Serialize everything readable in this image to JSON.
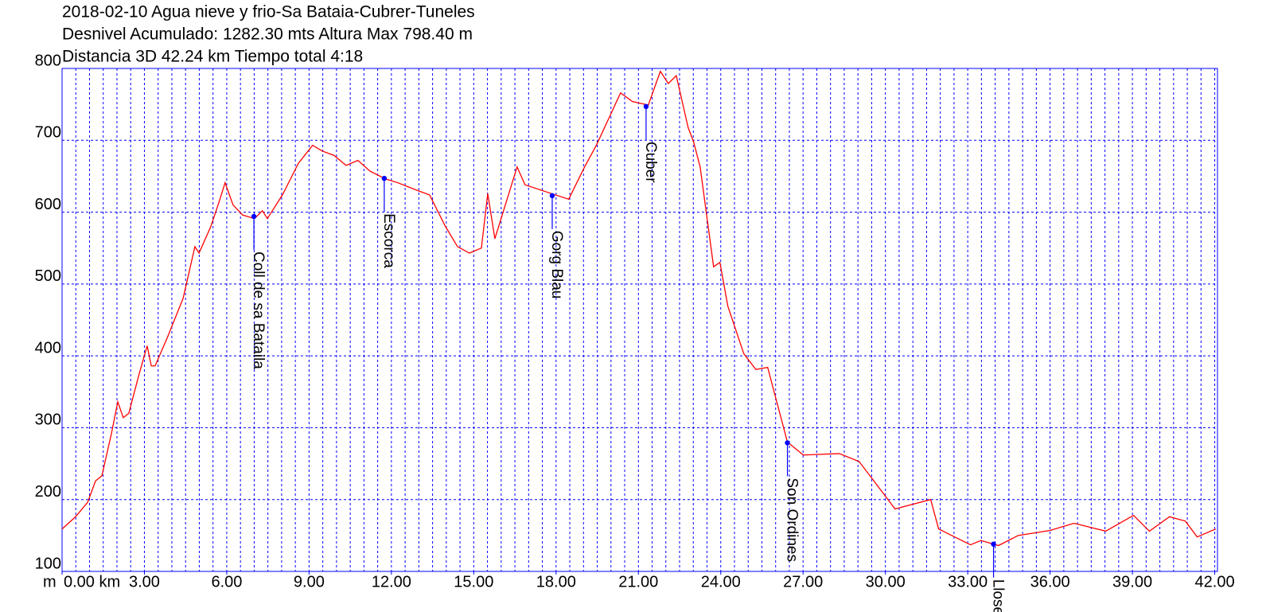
{
  "chart_data": {
    "type": "line",
    "title": [
      "2018-02-10 Agua nieve y frio-Sa Bataia-Cubrer-Tuneles",
      "Desnivel Acumulado: 1282.30 mts  Altura Max 798.40 m",
      "Distancia 3D 42.24 km  Tiempo total 4:18"
    ],
    "y_unit": "m",
    "x": [
      0,
      0.49,
      0.93,
      1.22,
      1.45,
      1.8,
      2.03,
      2.23,
      2.43,
      2.81,
      3.1,
      3.25,
      3.39,
      3.83,
      4.41,
      4.84,
      4.99,
      5.42,
      5.71,
      5.94,
      6.23,
      6.58,
      7.01,
      7.3,
      7.48,
      8.03,
      8.61,
      9.13,
      9.48,
      9.91,
      10.35,
      10.78,
      11.22,
      11.8,
      12.23,
      12.96,
      13.39,
      13.97,
      14.41,
      14.84,
      15.28,
      15.51,
      15.77,
      16.58,
      16.87,
      17.74,
      18.46,
      19.04,
      19.48,
      20.35,
      20.78,
      21.36,
      21.8,
      22.09,
      22.38,
      22.81,
      23.01,
      23.25,
      23.74,
      23.97,
      24.26,
      24.84,
      25.28,
      25.71,
      26.0,
      26.43,
      27.01,
      28.32,
      29.04,
      29.48,
      30.35,
      31.65,
      31.94,
      33.1,
      33.48,
      34.12,
      34.84,
      36.0,
      36.87,
      38.03,
      39.04,
      39.62,
      40.35,
      40.93,
      41.36,
      42.03
    ],
    "series": [
      {
        "color": "#ff0000",
        "values": [
          159,
          176,
          196,
          226,
          233,
          292,
          336,
          314,
          320,
          375,
          414,
          386,
          386,
          425,
          480,
          552,
          543,
          580,
          613,
          641,
          610,
          596,
          591,
          602,
          591,
          624,
          668,
          693,
          685,
          679,
          665,
          672,
          657,
          646,
          641,
          630,
          624,
          580,
          552,
          543,
          550,
          626,
          563,
          663,
          638,
          627,
          618,
          663,
          694,
          766,
          754,
          749,
          796,
          779,
          790,
          718,
          698,
          663,
          524,
          530,
          469,
          403,
          381,
          384,
          342,
          280,
          262,
          264,
          253,
          231,
          187,
          200,
          159,
          137,
          143,
          136,
          150,
          157,
          167,
          156,
          178,
          156,
          176,
          170,
          148,
          159
        ]
      }
    ],
    "waypoints": [
      {
        "name": "Coll de sa Bataila",
        "x": 6.99,
        "y": 594
      },
      {
        "name": "Escorca",
        "x": 11.74,
        "y": 647
      },
      {
        "name": "Gorg Blau",
        "x": 17.86,
        "y": 623
      },
      {
        "name": "Cuber",
        "x": 21.28,
        "y": 747
      },
      {
        "name": "Son Ordines",
        "x": 26.43,
        "y": 279
      },
      {
        "name": "Lloseta",
        "x": 33.94,
        "y": 138
      }
    ],
    "waypoint_color": "#0000ff",
    "grid_color": "#0000ff",
    "xlim": [
      0,
      42.1
    ],
    "ylim": [
      100,
      800
    ],
    "xticks": [
      {
        "value": 0,
        "label": "0.00 km"
      },
      {
        "value": 3,
        "label": "3.00"
      },
      {
        "value": 6,
        "label": "6.00"
      },
      {
        "value": 9,
        "label": "9.00"
      },
      {
        "value": 12,
        "label": "12.00"
      },
      {
        "value": 15,
        "label": "15.00"
      },
      {
        "value": 18,
        "label": "18.00"
      },
      {
        "value": 21,
        "label": "21.00"
      },
      {
        "value": 24,
        "label": "24.00"
      },
      {
        "value": 27,
        "label": "27.00"
      },
      {
        "value": 30,
        "label": "30.00"
      },
      {
        "value": 33,
        "label": "33.00"
      },
      {
        "value": 36,
        "label": "36.00"
      },
      {
        "value": 39,
        "label": "39.00"
      },
      {
        "value": 42,
        "label": "42.00"
      }
    ],
    "x_minor_ticks": [
      0.5,
      1,
      1.5,
      2,
      2.5,
      3,
      3.5,
      4,
      4.5,
      5,
      5.5,
      6,
      6.5,
      7,
      7.5,
      8,
      8.5,
      9,
      9.5,
      10,
      10.5,
      11,
      11.5,
      12,
      12.5,
      13,
      13.5,
      14,
      14.5,
      15,
      15.5,
      16,
      16.5,
      17,
      17.5,
      18,
      18.5,
      19,
      19.5,
      20,
      20.5,
      21,
      21.5,
      22,
      22.5,
      23,
      23.5,
      24,
      24.5,
      25,
      25.5,
      26,
      26.5,
      27,
      27.5,
      28,
      28.5,
      29,
      29.5,
      30,
      30.5,
      31,
      31.5,
      32,
      32.5,
      33,
      33.5,
      34,
      34.5,
      35,
      35.5,
      36,
      36.5,
      37,
      37.5,
      38,
      38.5,
      39,
      39.5,
      40,
      40.5,
      41,
      41.5,
      42
    ],
    "yticks": [
      100,
      200,
      300,
      400,
      500,
      600,
      700,
      800
    ],
    "grid": true
  }
}
